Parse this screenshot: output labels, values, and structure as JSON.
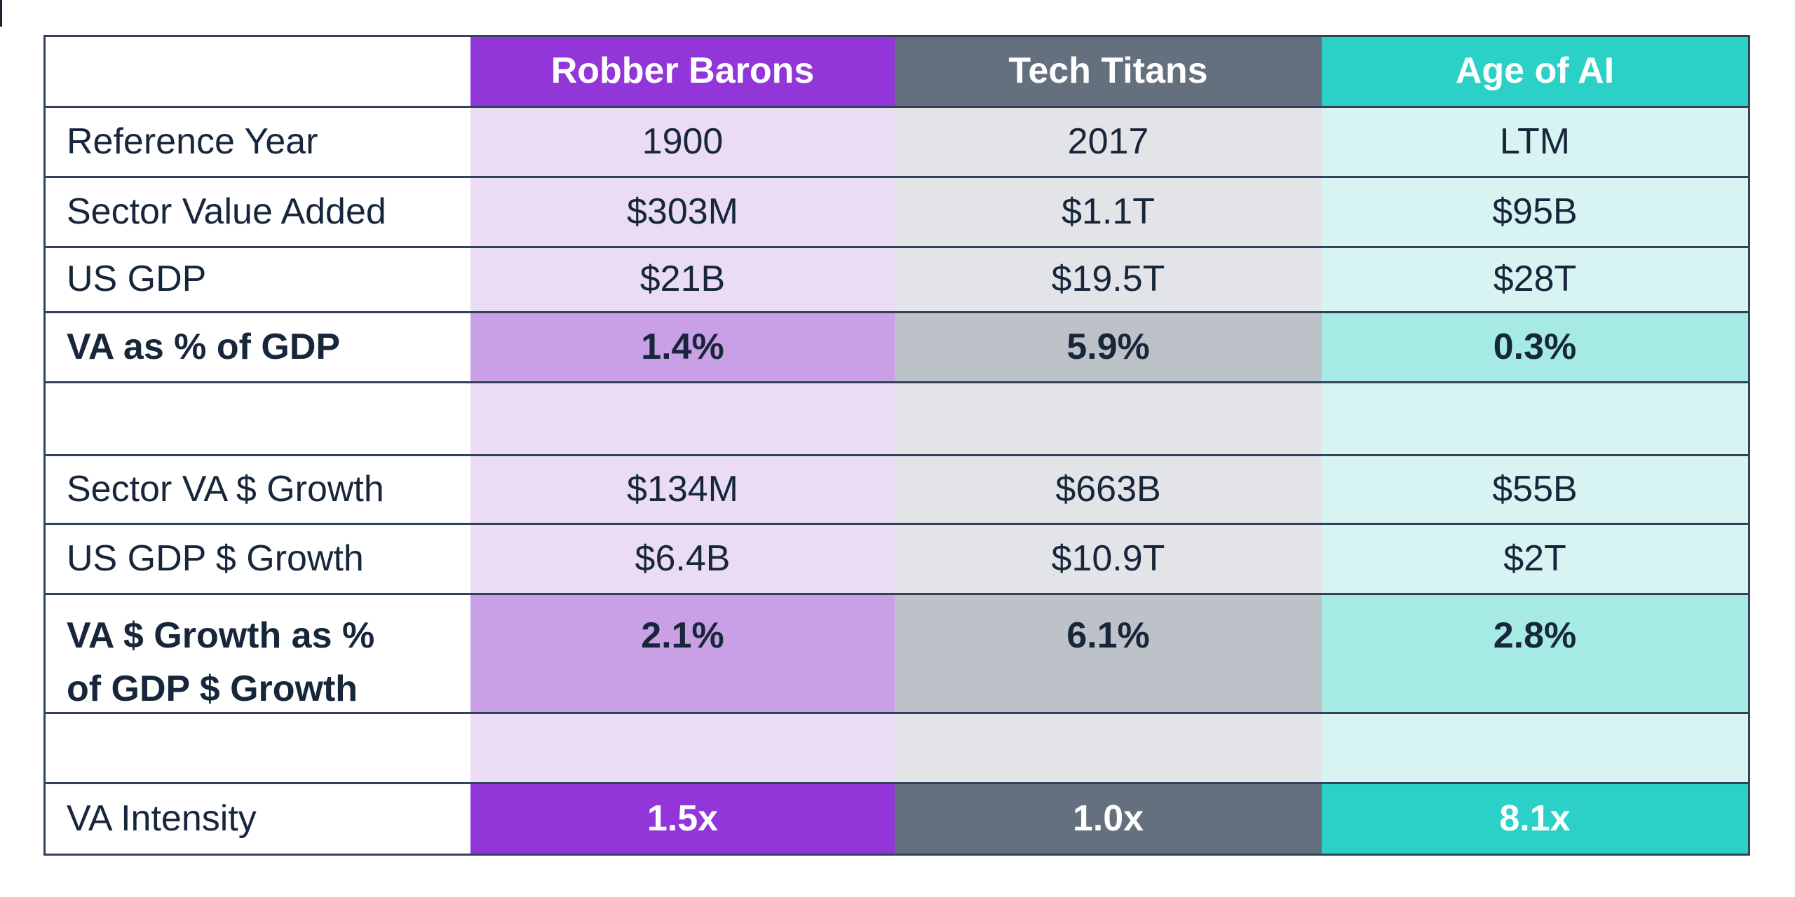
{
  "colors": {
    "text": "#17263B",
    "border": "#334259",
    "white": "#FFFFFF",
    "purple": "#9236D9",
    "purple_mid": "#C9A0E5",
    "purple_light": "#EBDCF5",
    "slate": "#65707E",
    "slate_mid": "#BDC1C8",
    "slate_light": "#E3E4E7",
    "teal": "#2BD1C6",
    "teal_mid": "#A5EBE3",
    "teal_light": "#D8F4F2"
  },
  "table": {
    "columns": [
      {
        "key": "label",
        "header": "",
        "accent": "white",
        "tint": "white",
        "mid": "white"
      },
      {
        "key": "robber-barons",
        "header": "Robber Barons",
        "accent": "purple",
        "tint": "purple_light",
        "mid": "purple_mid"
      },
      {
        "key": "tech-titans",
        "header": "Tech Titans",
        "accent": "slate",
        "tint": "slate_light",
        "mid": "slate_mid"
      },
      {
        "key": "age-of-ai",
        "header": "Age of AI",
        "accent": "teal",
        "tint": "teal_light",
        "mid": "teal_mid"
      }
    ],
    "rows": [
      {
        "key": "reference-year",
        "type": "data",
        "style": "normal",
        "label": "Reference Year",
        "values": [
          "1900",
          "2017",
          "LTM"
        ]
      },
      {
        "key": "sector-value-added",
        "type": "data",
        "style": "normal",
        "label": "Sector Value Added",
        "values": [
          "$303M",
          "$1.1T",
          "$95B"
        ]
      },
      {
        "key": "us-gdp",
        "type": "data",
        "style": "normal",
        "label": "US GDP",
        "values": [
          "$21B",
          "$19.5T",
          "$28T"
        ]
      },
      {
        "key": "va-as-pct-of-gdp",
        "type": "data",
        "style": "highlight",
        "label": "VA as % of GDP",
        "values": [
          "1.4%",
          "5.9%",
          "0.3%"
        ]
      },
      {
        "key": "spacer-1",
        "type": "spacer",
        "label": "",
        "values": [
          "",
          "",
          ""
        ]
      },
      {
        "key": "sector-va-growth",
        "type": "data",
        "style": "normal",
        "label": "Sector VA $ Growth",
        "values": [
          "$134M",
          "$663B",
          "$55B"
        ]
      },
      {
        "key": "us-gdp-growth",
        "type": "data",
        "style": "normal",
        "label": "US GDP $ Growth",
        "values": [
          "$6.4B",
          "$10.9T",
          "$2T"
        ]
      },
      {
        "key": "va-growth-as-pct-of-gdp-growth",
        "type": "data",
        "style": "highlight",
        "tall": true,
        "label": "VA $ Growth as %\nof GDP $ Growth",
        "values": [
          "2.1%",
          "6.1%",
          "2.8%"
        ]
      },
      {
        "key": "spacer-2",
        "type": "spacer",
        "label": "",
        "values": [
          "",
          "",
          ""
        ]
      },
      {
        "key": "va-intensity",
        "type": "data",
        "style": "solid",
        "label": "VA Intensity",
        "values": [
          "1.5x",
          "1.0x",
          "8.1x"
        ]
      }
    ]
  },
  "chart_data": {
    "type": "table",
    "title": "",
    "columns": [
      "",
      "Robber Barons",
      "Tech Titans",
      "Age of AI"
    ],
    "rows": [
      [
        "Reference Year",
        "1900",
        "2017",
        "LTM"
      ],
      [
        "Sector Value Added",
        "$303M",
        "$1.1T",
        "$95B"
      ],
      [
        "US GDP",
        "$21B",
        "$19.5T",
        "$28T"
      ],
      [
        "VA as % of GDP",
        "1.4%",
        "5.9%",
        "0.3%"
      ],
      [
        "Sector VA $ Growth",
        "$134M",
        "$663B",
        "$55B"
      ],
      [
        "US GDP $ Growth",
        "$6.4B",
        "$10.9T",
        "$2T"
      ],
      [
        "VA $ Growth as % of GDP $ Growth",
        "2.1%",
        "6.1%",
        "2.8%"
      ],
      [
        "VA Intensity",
        "1.5x",
        "1.0x",
        "8.1x"
      ]
    ],
    "layout_hints": {
      "header_fill_colors": [
        "#FFFFFF",
        "#9236D9",
        "#65707E",
        "#2BD1C6"
      ],
      "highlight_rows": [
        "VA as % of GDP",
        "VA $ Growth as % of GDP $ Growth"
      ],
      "solid_rows": [
        "VA Intensity"
      ],
      "grid": "horizontal-only"
    }
  }
}
